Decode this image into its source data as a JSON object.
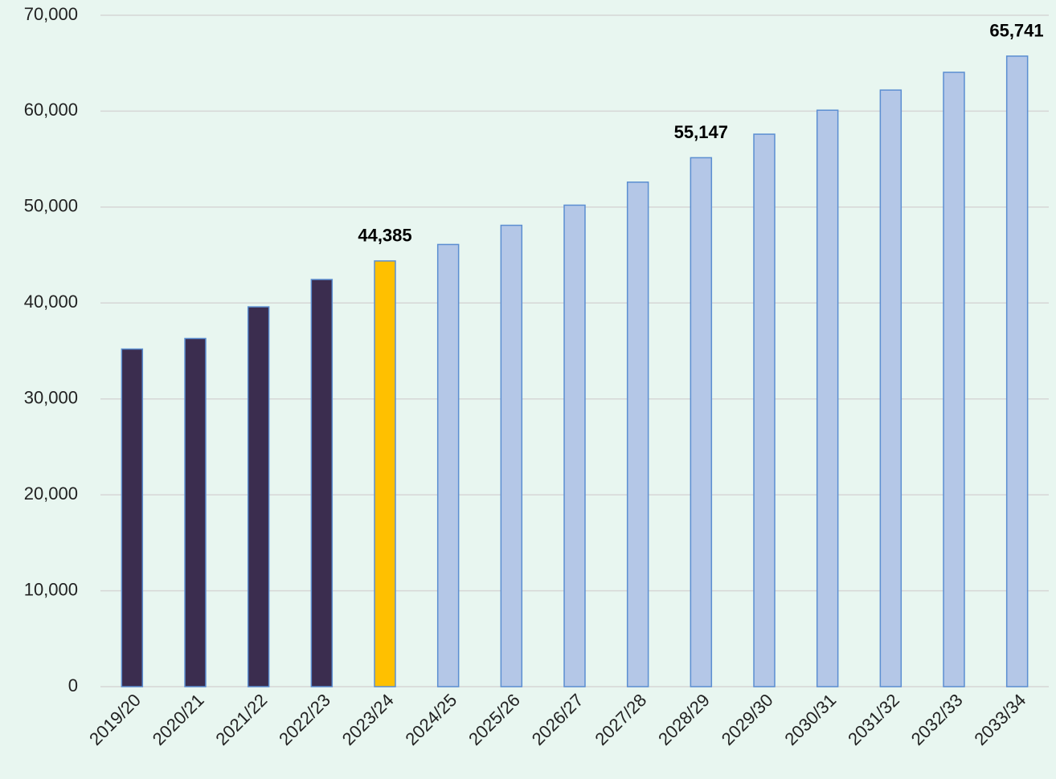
{
  "chart_data": {
    "type": "bar",
    "categories": [
      "2019/20",
      "2020/21",
      "2021/22",
      "2022/23",
      "2023/24",
      "2024/25",
      "2025/26",
      "2026/27",
      "2027/28",
      "2028/29",
      "2029/30",
      "2030/31",
      "2031/32",
      "2032/33",
      "2033/34"
    ],
    "values": [
      35200,
      36300,
      39600,
      42450,
      44385,
      46100,
      48100,
      50200,
      52600,
      55147,
      57600,
      60100,
      62200,
      64050,
      65741
    ],
    "value_labels": [
      null,
      null,
      null,
      null,
      "44,385",
      null,
      null,
      null,
      null,
      "55,147",
      null,
      null,
      null,
      null,
      "65,741"
    ],
    "colors": [
      "#3b2d4f",
      "#3b2d4f",
      "#3b2d4f",
      "#3b2d4f",
      "#ffc000",
      "#b4c7e7",
      "#b4c7e7",
      "#b4c7e7",
      "#b4c7e7",
      "#b4c7e7",
      "#b4c7e7",
      "#b4c7e7",
      "#b4c7e7",
      "#b4c7e7",
      "#b4c7e7"
    ],
    "edgecolor": "#5b8ed1",
    "ylim": [
      0,
      70000
    ],
    "yticks": [
      0,
      {
        "value": 10000,
        "label": "10,000"
      },
      {
        "value": 20000,
        "label": "20,000"
      },
      {
        "value": 30000,
        "label": "30,000"
      },
      {
        "value": 40000,
        "label": "40,000"
      },
      {
        "value": 50000,
        "label": "50,000"
      },
      {
        "value": 60000,
        "label": "60,000"
      },
      {
        "value": 70000,
        "label": "70,000"
      }
    ],
    "grid": true
  }
}
